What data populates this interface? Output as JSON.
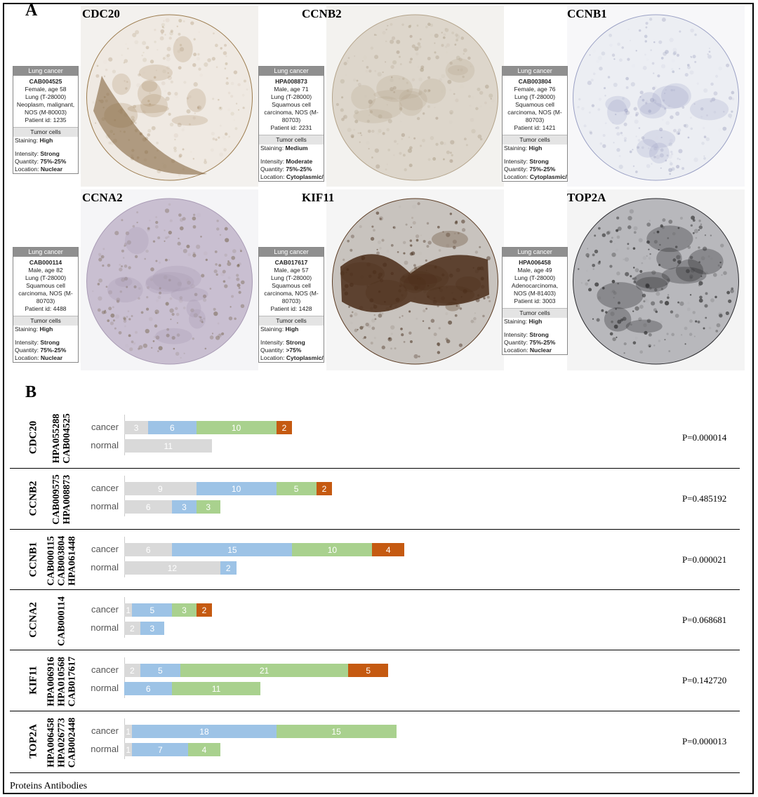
{
  "panel_a_label": "A",
  "panel_b_label": "B",
  "colors": {
    "none": "#d9d9d9",
    "low": "#9dc3e6",
    "medium": "#a9d18e",
    "high": "#c55a11"
  },
  "ihc_panels": [
    {
      "gene": "CDC20",
      "header": "Lung cancer",
      "antibody": "CAB004525",
      "desc": [
        "Female, age 58",
        "Lung (T-28000)",
        "Neoplasm, malignant,",
        "NOS (M-80003)",
        "Patient id: 1235"
      ],
      "tumor_cells": "Tumor cells",
      "staining_label": "Staining:",
      "staining": "High",
      "intensity_label": "Intensity:",
      "intensity": "Strong",
      "quantity_label": "Quantity:",
      "quantity": "75%-25%",
      "location_label": "Location:",
      "location": "Nuclear"
    },
    {
      "gene": "CCNB2",
      "header": "Lung cancer",
      "antibody": "HPA008873",
      "desc": [
        "Male, age 71",
        "Lung (T-28000)",
        "Squamous cell",
        "carcinoma, NOS (M-",
        "80703)",
        "Patient id: 2231"
      ],
      "tumor_cells": "Tumor cells",
      "staining_label": "Staining:",
      "staining": "Medium",
      "intensity_label": "Intensity:",
      "intensity": "Moderate",
      "quantity_label": "Quantity:",
      "quantity": "75%-25%",
      "location_label": "Location:",
      "location": "Cytoplasmic/ membranou"
    },
    {
      "gene": "CCNB1",
      "header": "Lung cancer",
      "antibody": "CAB003804",
      "desc": [
        "Female, age 76",
        "Lung (T-28000)",
        "Squamous cell",
        "carcinoma, NOS (M-",
        "80703)",
        "Patient id: 1421"
      ],
      "tumor_cells": "Tumor cells",
      "staining_label": "Staining:",
      "staining": "High",
      "intensity_label": "Intensity:",
      "intensity": "Strong",
      "quantity_label": "Quantity:",
      "quantity": "75%-25%",
      "location_label": "Location:",
      "location": "Cytoplasmic/ membranou"
    },
    {
      "gene": "CCNA2",
      "header": "Lung cancer",
      "antibody": "CAB000114",
      "desc": [
        "Male, age 82",
        "Lung (T-28000)",
        "Squamous cell",
        "carcinoma, NOS (M-",
        "80703)",
        "Patient id: 4488"
      ],
      "tumor_cells": "Tumor cells",
      "staining_label": "Staining:",
      "staining": "High",
      "intensity_label": "Intensity:",
      "intensity": "Strong",
      "quantity_label": "Quantity:",
      "quantity": "75%-25%",
      "location_label": "Location:",
      "location": "Nuclear"
    },
    {
      "gene": "KIF11",
      "header": "Lung cancer",
      "antibody": "CAB017617",
      "desc": [
        "Male, age 57",
        "Lung (T-28000)",
        "Squamous cell",
        "carcinoma, NOS (M-",
        "80703)",
        "Patient id: 1428"
      ],
      "tumor_cells": "Tumor cells",
      "staining_label": "Staining:",
      "staining": "High",
      "intensity_label": "Intensity:",
      "intensity": "Strong",
      "quantity_label": "Quantity:",
      "quantity": ">75%",
      "location_label": "Location:",
      "location": "Cytoplasmic/ membranou/ nuclear"
    },
    {
      "gene": "TOP2A",
      "header": "Lung cancer",
      "antibody": "HPA006458",
      "desc": [
        "Male, age 49",
        "Lung (T-28000)",
        "Adenocarcinoma,",
        "NOS (M-81403)",
        "Patient id: 3003"
      ],
      "tumor_cells": "Tumor cells",
      "staining_label": "Staining:",
      "staining": "High",
      "intensity_label": "Intensity:",
      "intensity": "Strong",
      "quantity_label": "Quantity:",
      "quantity": "75%-25%",
      "location_label": "Location:",
      "location": "Nuclear"
    }
  ],
  "chart_data": {
    "type": "bar",
    "orientation": "horizontal-stacked",
    "stack_levels": [
      "none",
      "low",
      "medium",
      "high"
    ],
    "rows": [
      {
        "protein": "CDC20",
        "antibodies": "HPA055288\nCAB004525",
        "cancer": [
          3,
          6,
          10,
          2
        ],
        "normal": [
          11,
          0,
          0,
          0
        ],
        "p": "P=0.000014"
      },
      {
        "protein": "CCNB2",
        "antibodies": "CAB009575\nHPA008873",
        "cancer": [
          9,
          10,
          5,
          2
        ],
        "normal": [
          6,
          3,
          3,
          0
        ],
        "p": "P=0.485192"
      },
      {
        "protein": "CCNB1",
        "antibodies": "CAB000115\nCAB003804\nHPA061448",
        "cancer": [
          6,
          15,
          10,
          4
        ],
        "normal": [
          12,
          2,
          0,
          0
        ],
        "p": "P=0.000021"
      },
      {
        "protein": "CCNA2",
        "antibodies": "CAB000114",
        "cancer": [
          1,
          5,
          3,
          2
        ],
        "normal": [
          2,
          3,
          0,
          0
        ],
        "p": "P=0.068681"
      },
      {
        "protein": "KIF11",
        "antibodies": "HPA006916\nHPA010568\nCAB017617",
        "cancer": [
          2,
          5,
          21,
          5
        ],
        "normal": [
          0,
          6,
          11,
          0
        ],
        "p": "P=0.142720"
      },
      {
        "protein": "TOP2A",
        "antibodies": "HPA006458\nHPA026773\nCAB002448",
        "cancer": [
          1,
          18,
          15,
          0
        ],
        "normal": [
          1,
          7,
          4,
          0
        ],
        "p": "P=0.000013"
      }
    ],
    "row_labels": {
      "cancer": "cancer",
      "normal": "normal"
    }
  },
  "footer": "Proteins  Antibodies"
}
